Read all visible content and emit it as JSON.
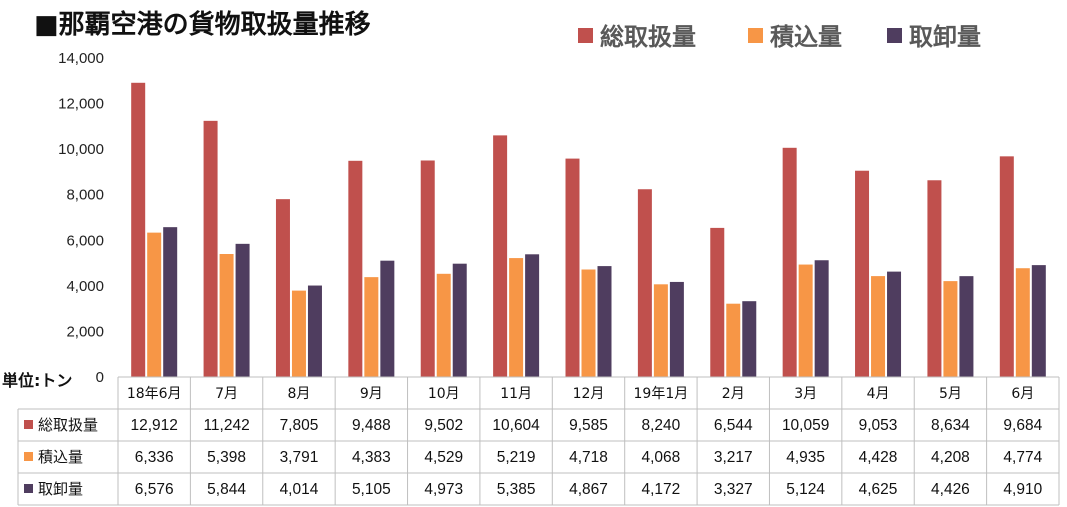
{
  "title": "■那覇空港の貨物取扱量推移",
  "unit_label": "単位:トン",
  "colors": {
    "total": "#C0504D",
    "loaded": "#F79646",
    "unloaded": "#4F3D5F"
  },
  "chart_data": {
    "type": "bar",
    "title": "■那覇空港の貨物取扱量推移",
    "categories": [
      "18年6月",
      "7月",
      "8月",
      "9月",
      "10月",
      "11月",
      "12月",
      "19年1月",
      "2月",
      "3月",
      "4月",
      "5月",
      "6月"
    ],
    "series": [
      {
        "name": "総取扱量",
        "color": "#C0504D",
        "values": [
          12912,
          11242,
          7805,
          9488,
          9502,
          10604,
          9585,
          8240,
          6544,
          10059,
          9053,
          8634,
          9684
        ],
        "display": [
          "12,912",
          "11,242",
          "7,805",
          "9,488",
          "9,502",
          "10,604",
          "9,585",
          "8,240",
          "6,544",
          "10,059",
          "9,053",
          "8,634",
          "9,684"
        ]
      },
      {
        "name": "積込量",
        "color": "#F79646",
        "values": [
          6336,
          5398,
          3791,
          4383,
          4529,
          5219,
          4718,
          4068,
          3217,
          4935,
          4428,
          4208,
          4774
        ],
        "display": [
          "6,336",
          "5,398",
          "3,791",
          "4,383",
          "4,529",
          "5,219",
          "4,718",
          "4,068",
          "3,217",
          "4,935",
          "4,428",
          "4,208",
          "4,774"
        ]
      },
      {
        "name": "取卸量",
        "color": "#4F3D5F",
        "values": [
          6576,
          5844,
          4014,
          5105,
          4973,
          5385,
          4867,
          4172,
          3327,
          5124,
          4625,
          4426,
          4910
        ],
        "display": [
          "6,576",
          "5,844",
          "4,014",
          "5,105",
          "4,973",
          "5,385",
          "4,867",
          "4,172",
          "3,327",
          "5,124",
          "4,625",
          "4,426",
          "4,910"
        ]
      }
    ],
    "ylim": [
      0,
      14000
    ],
    "yticks": [
      0,
      2000,
      4000,
      6000,
      8000,
      10000,
      12000,
      14000
    ],
    "ytick_labels": [
      "0",
      "2,000",
      "4,000",
      "6,000",
      "8,000",
      "10,000",
      "12,000",
      "14,000"
    ],
    "grid": false,
    "legend_position": "top-right",
    "data_table": true
  }
}
